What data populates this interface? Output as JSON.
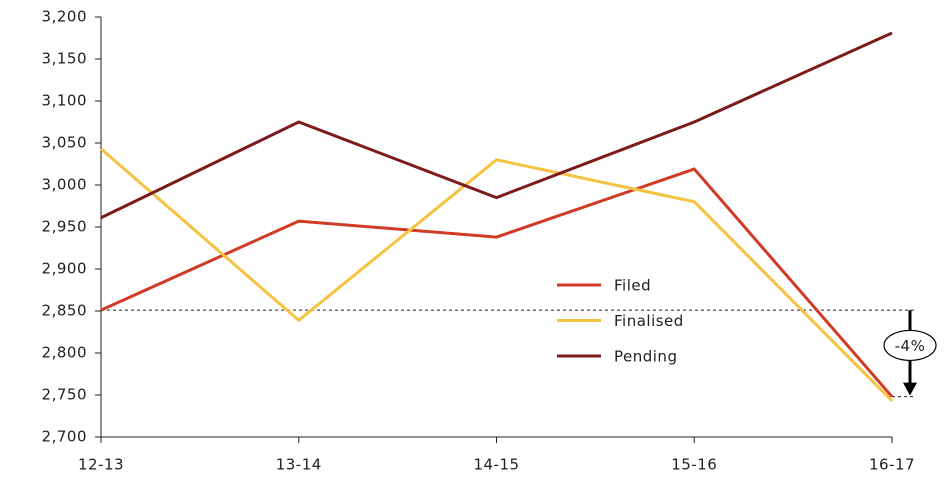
{
  "chart_data": {
    "type": "line",
    "categories": [
      "12-13",
      "13-14",
      "14-15",
      "15-16",
      "16-17"
    ],
    "series": [
      {
        "name": "Filed",
        "color": "#d13b26",
        "values": [
          2851,
          2957,
          2938,
          3019,
          2748
        ]
      },
      {
        "name": "Finalised",
        "color": "#f5c242",
        "values": [
          3043,
          2839,
          3030,
          2980,
          2743
        ]
      },
      {
        "name": "Pending",
        "color": "#7d1b1b",
        "values": [
          2961,
          3075,
          2985,
          3075,
          3181
        ]
      }
    ],
    "ylim": [
      2700,
      3200
    ],
    "yticks": [
      {
        "value": 2700,
        "label": "2,700"
      },
      {
        "value": 2750,
        "label": "2,750"
      },
      {
        "value": 2800,
        "label": "2,800"
      },
      {
        "value": 2850,
        "label": "2,850"
      },
      {
        "value": 2900,
        "label": "2,900"
      },
      {
        "value": 2950,
        "label": "2,950"
      },
      {
        "value": 3000,
        "label": "3,000"
      },
      {
        "value": 3050,
        "label": "3,050"
      },
      {
        "value": 3100,
        "label": "3,100"
      },
      {
        "value": 3150,
        "label": "3,150"
      },
      {
        "value": 3200,
        "label": "3,200"
      }
    ],
    "annotation": "-4%"
  }
}
